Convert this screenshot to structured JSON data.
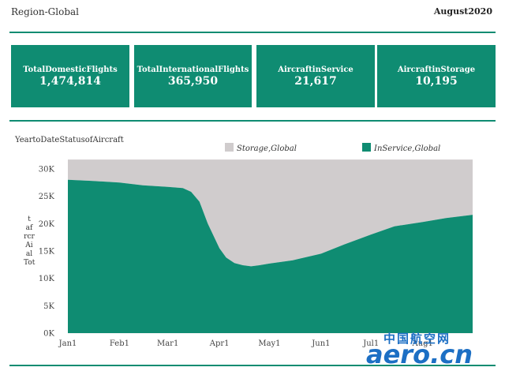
{
  "header": {
    "region": "Region-Global",
    "period": "August2020"
  },
  "kpis": [
    {
      "label": "TotalDomesticFlights",
      "value": "1,474,814"
    },
    {
      "label": "TotalInternationalFlights",
      "value": "365,950"
    },
    {
      "label": "AircraftinService",
      "value": "21,617"
    },
    {
      "label": "AircraftinStorage",
      "value": "10,195"
    }
  ],
  "chart_data": {
    "type": "area",
    "title": "YeartoDateStatusofAircraft",
    "ylabel_lines": [
      "t",
      "af",
      "rcr",
      "Ai",
      "al",
      "Tot"
    ],
    "x_tick_labels": [
      "Jan1",
      "Feb1",
      "Mar1",
      "Apr1",
      "May1",
      "Jun1",
      "Jul1",
      "Aug1"
    ],
    "y_tick_labels": [
      "0K",
      "5K",
      "10K",
      "15K",
      "20K",
      "25K",
      "30K"
    ],
    "ylim": [
      0,
      32000
    ],
    "stacked": true,
    "legend_position": "top",
    "x": [
      "2020-01-01",
      "2020-01-15",
      "2020-02-01",
      "2020-02-15",
      "2020-03-01",
      "2020-03-10",
      "2020-03-15",
      "2020-03-20",
      "2020-03-25",
      "2020-04-01",
      "2020-04-05",
      "2020-04-10",
      "2020-04-15",
      "2020-04-20",
      "2020-04-25",
      "2020-05-01",
      "2020-05-15",
      "2020-06-01",
      "2020-06-15",
      "2020-07-01",
      "2020-07-15",
      "2020-08-01",
      "2020-08-15",
      "2020-08-31"
    ],
    "series": [
      {
        "name": "InService,Global",
        "color": "#0f8c72",
        "values": [
          28000,
          27800,
          27500,
          27000,
          26700,
          26500,
          25800,
          24000,
          20000,
          15500,
          13800,
          12800,
          12400,
          12200,
          12400,
          12700,
          13300,
          14500,
          16200,
          18000,
          19500,
          20300,
          21000,
          21600
        ]
      },
      {
        "name": "Storage,Global",
        "color": "#d0cccd",
        "values": [
          3700,
          3900,
          4200,
          4700,
          5000,
          5200,
          5900,
          7700,
          11700,
          16200,
          17900,
          18900,
          19300,
          19500,
          19300,
          19000,
          18400,
          17200,
          15500,
          13700,
          12200,
          11400,
          10700,
          10100
        ]
      }
    ]
  },
  "watermark": {
    "cn": "中国航空网",
    "en": "aero.cn"
  }
}
